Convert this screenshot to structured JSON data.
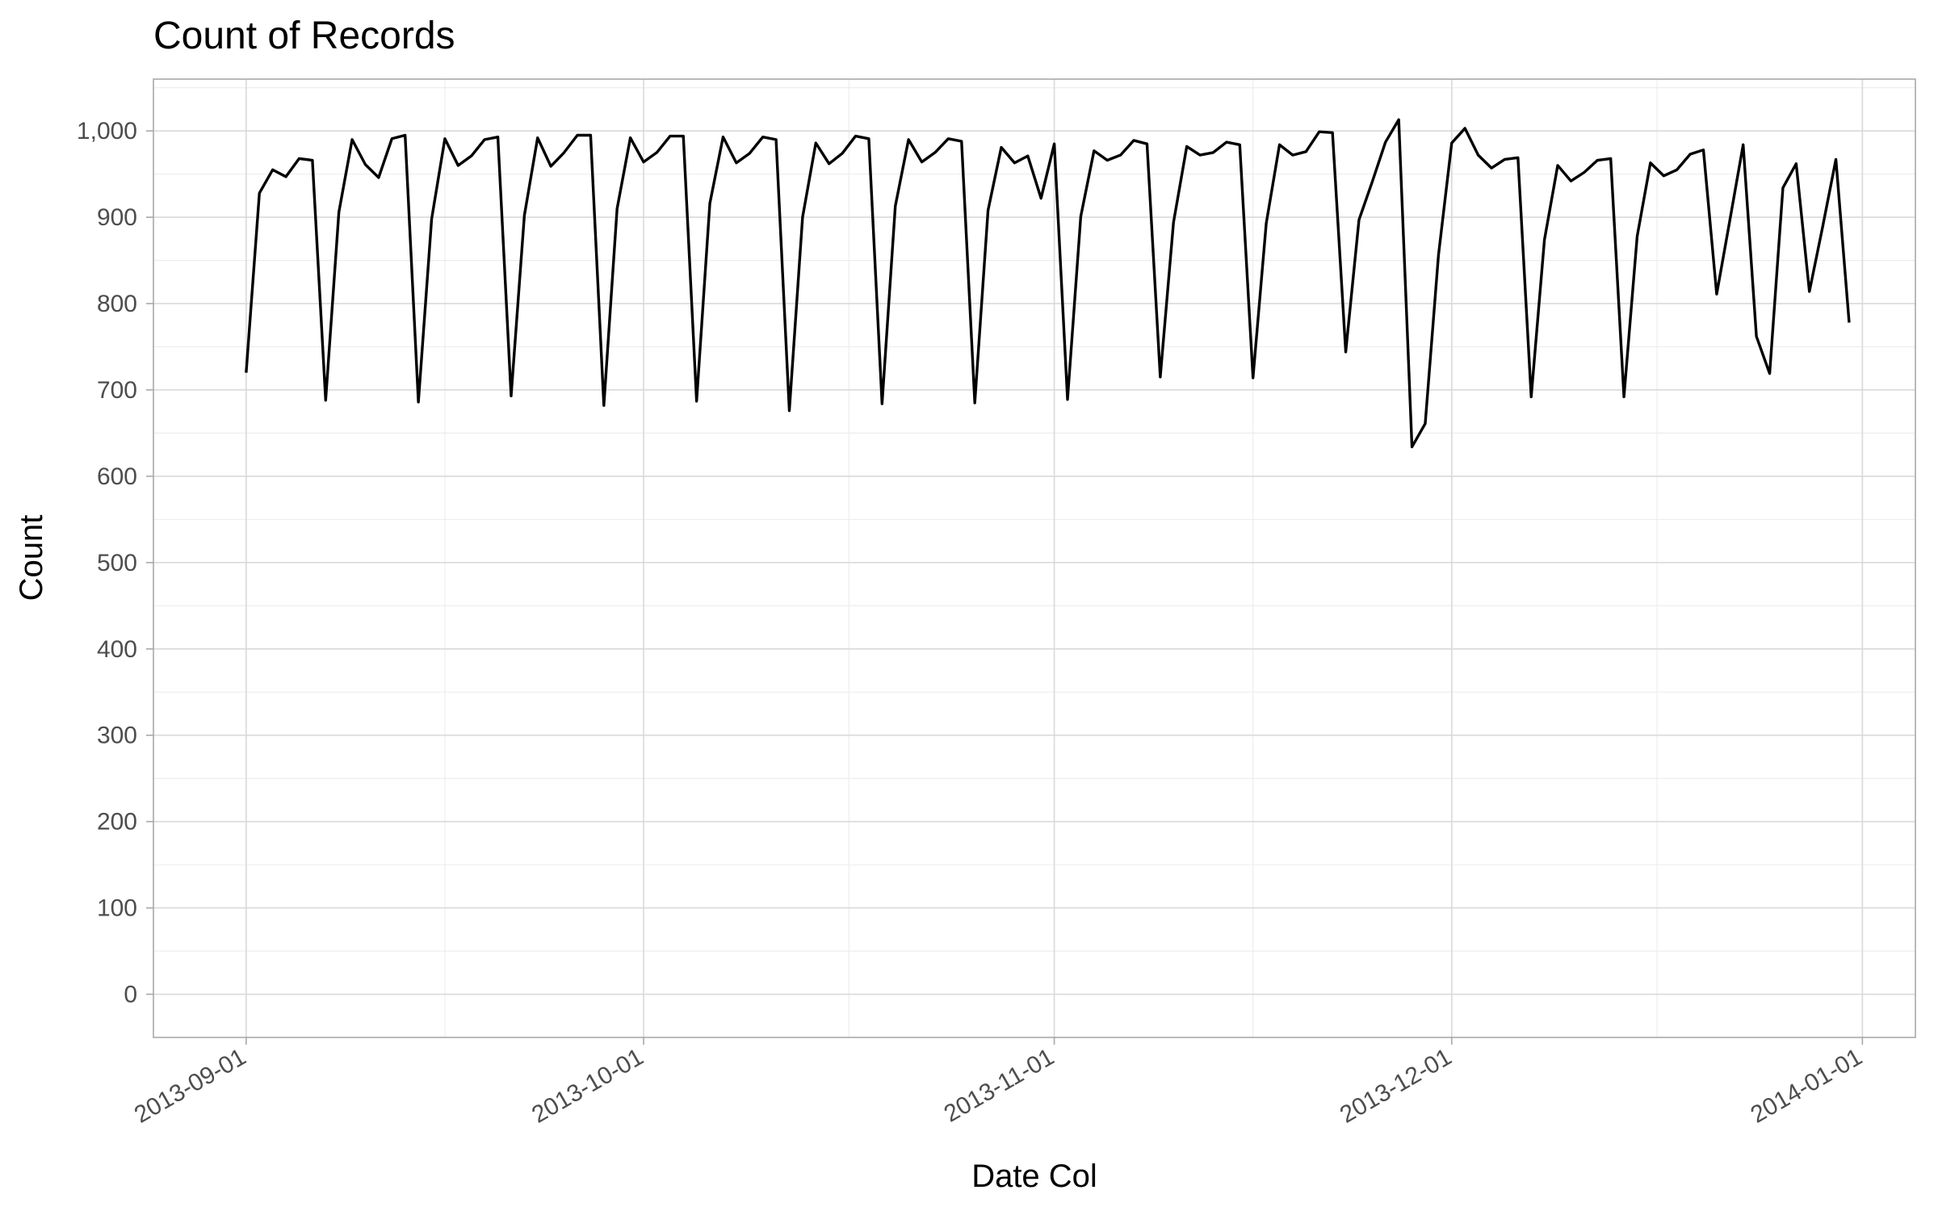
{
  "chart_data": {
    "type": "line",
    "title": "Count of Records",
    "xlabel": "Date Col",
    "ylabel": "Count",
    "xlim": [
      "2013-08-25",
      "2014-01-05"
    ],
    "ylim": [
      -50,
      1060
    ],
    "grid": true,
    "legend": "none",
    "series_color": "#000000",
    "x_ticks": [
      "2013-09-01",
      "2013-10-01",
      "2013-11-01",
      "2013-12-01",
      "2014-01-01"
    ],
    "y_ticks": [
      0,
      100,
      200,
      300,
      400,
      500,
      600,
      700,
      800,
      900,
      1000
    ],
    "y_tick_labels": [
      "0",
      "100",
      "200",
      "300",
      "400",
      "500",
      "600",
      "700",
      "800",
      "900",
      "1,000"
    ],
    "x": [
      "2013-09-01",
      "2013-09-02",
      "2013-09-03",
      "2013-09-04",
      "2013-09-05",
      "2013-09-06",
      "2013-09-07",
      "2013-09-08",
      "2013-09-09",
      "2013-09-10",
      "2013-09-11",
      "2013-09-12",
      "2013-09-13",
      "2013-09-14",
      "2013-09-15",
      "2013-09-16",
      "2013-09-17",
      "2013-09-18",
      "2013-09-19",
      "2013-09-20",
      "2013-09-21",
      "2013-09-22",
      "2013-09-23",
      "2013-09-24",
      "2013-09-25",
      "2013-09-26",
      "2013-09-27",
      "2013-09-28",
      "2013-09-29",
      "2013-09-30",
      "2013-10-01",
      "2013-10-02",
      "2013-10-03",
      "2013-10-04",
      "2013-10-05",
      "2013-10-06",
      "2013-10-07",
      "2013-10-08",
      "2013-10-09",
      "2013-10-10",
      "2013-10-11",
      "2013-10-12",
      "2013-10-13",
      "2013-10-14",
      "2013-10-15",
      "2013-10-16",
      "2013-10-17",
      "2013-10-18",
      "2013-10-19",
      "2013-10-20",
      "2013-10-21",
      "2013-10-22",
      "2013-10-23",
      "2013-10-24",
      "2013-10-25",
      "2013-10-26",
      "2013-10-27",
      "2013-10-28",
      "2013-10-29",
      "2013-10-30",
      "2013-10-31",
      "2013-11-01",
      "2013-11-02",
      "2013-11-03",
      "2013-11-04",
      "2013-11-05",
      "2013-11-06",
      "2013-11-07",
      "2013-11-08",
      "2013-11-09",
      "2013-11-10",
      "2013-11-11",
      "2013-11-12",
      "2013-11-13",
      "2013-11-14",
      "2013-11-15",
      "2013-11-16",
      "2013-11-17",
      "2013-11-18",
      "2013-11-19",
      "2013-11-20",
      "2013-11-21",
      "2013-11-22",
      "2013-11-23",
      "2013-11-24",
      "2013-11-25",
      "2013-11-26",
      "2013-11-27",
      "2013-11-28",
      "2013-11-29",
      "2013-11-30",
      "2013-12-01",
      "2013-12-02",
      "2013-12-03",
      "2013-12-04",
      "2013-12-05",
      "2013-12-06",
      "2013-12-07",
      "2013-12-08",
      "2013-12-09",
      "2013-12-10",
      "2013-12-11",
      "2013-12-12",
      "2013-12-13",
      "2013-12-14",
      "2013-12-15",
      "2013-12-16",
      "2013-12-17",
      "2013-12-18",
      "2013-12-19",
      "2013-12-20",
      "2013-12-21",
      "2013-12-22",
      "2013-12-23",
      "2013-12-24",
      "2013-12-25",
      "2013-12-26",
      "2013-12-27",
      "2013-12-28",
      "2013-12-29",
      "2013-12-30",
      "2013-12-31"
    ],
    "values": [
      720,
      928,
      955,
      947,
      968,
      966,
      688,
      906,
      990,
      961,
      946,
      991,
      995,
      686,
      898,
      991,
      960,
      971,
      990,
      993,
      693,
      902,
      992,
      959,
      975,
      995,
      995,
      682,
      910,
      992,
      964,
      975,
      994,
      994,
      687,
      916,
      993,
      963,
      974,
      993,
      990,
      676,
      900,
      986,
      962,
      974,
      994,
      991,
      684,
      913,
      990,
      964,
      975,
      991,
      988,
      685,
      908,
      981,
      963,
      971,
      922,
      985,
      689,
      901,
      977,
      966,
      972,
      989,
      985,
      715,
      894,
      982,
      972,
      975,
      987,
      984,
      714,
      893,
      984,
      972,
      976,
      999,
      998,
      744,
      897,
      941,
      987,
      1013,
      634,
      661,
      856,
      986,
      1003,
      972,
      957,
      967,
      969,
      692,
      874,
      960,
      942,
      952,
      966,
      968,
      692,
      878,
      963,
      948,
      955,
      973,
      978,
      811,
      897,
      984,
      762,
      719,
      934,
      962,
      814,
      889,
      967,
      778
    ]
  }
}
